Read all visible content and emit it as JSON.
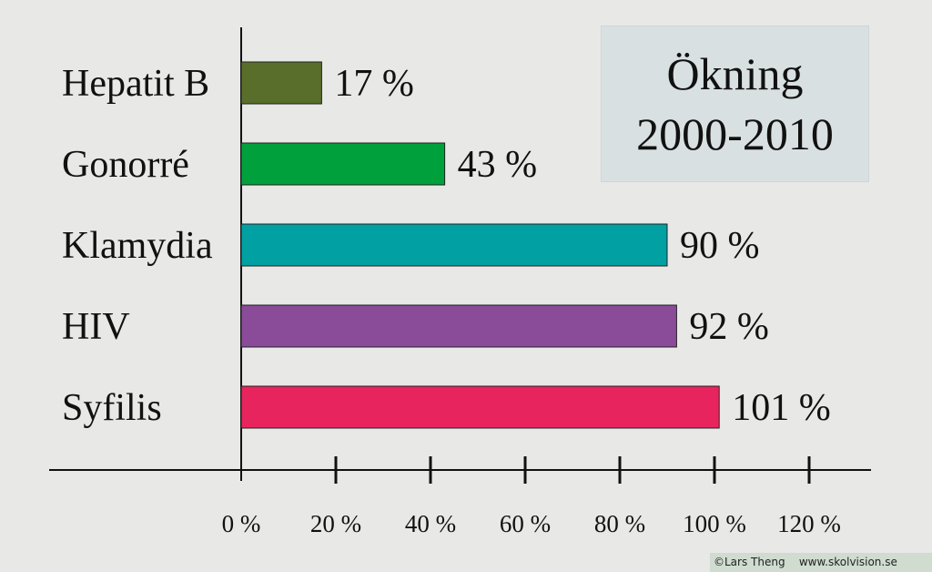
{
  "chart_data": {
    "type": "bar",
    "orientation": "horizontal",
    "title_lines": [
      "Ökning",
      "2000-2010"
    ],
    "categories": [
      "Hepatit B",
      "Gonorré",
      "Klamydia",
      "HIV",
      "Syfilis"
    ],
    "values": [
      17,
      43,
      90,
      92,
      101
    ],
    "value_labels": [
      "17 %",
      "43 %",
      "90 %",
      "92 %",
      "101 %"
    ],
    "colors": [
      "#586e2a",
      "#00a03c",
      "#00a0a3",
      "#8a4b98",
      "#e8245e"
    ],
    "xlim": [
      0,
      120
    ],
    "x_ticks": [
      0,
      20,
      40,
      60,
      80,
      100,
      120
    ],
    "x_tick_labels": [
      "0 %",
      "20 %",
      "40 %",
      "60 %",
      "80 %",
      "100 %",
      "120 %"
    ],
    "grid": false
  },
  "credit": "©Lars Theng    www.skolvision.se"
}
